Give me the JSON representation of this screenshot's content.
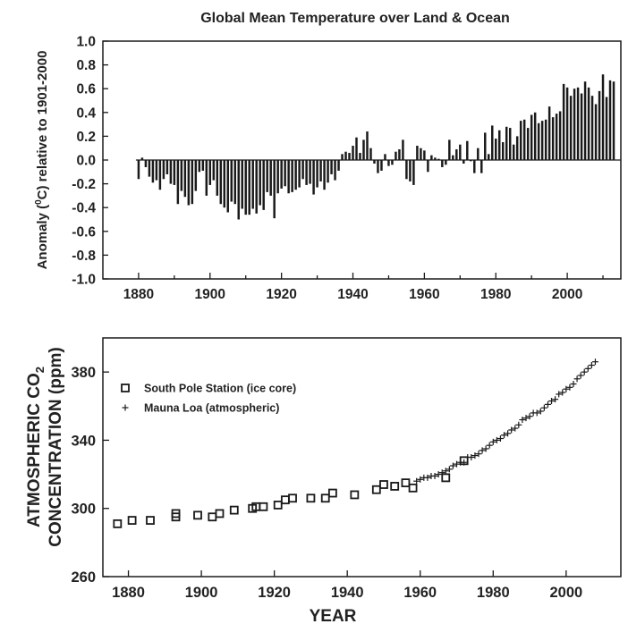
{
  "chart_data": [
    {
      "type": "bar",
      "title": "Global Mean Temperature over Land & Ocean",
      "xlabel": "",
      "ylabel": "Anomaly (°C) relative to 1901-2000",
      "ylabel_parts": {
        "pre": "Anomaly (",
        "sup": "0",
        "post": "C) relative to 1901-2000"
      },
      "xlim": [
        1870,
        2015
      ],
      "ylim": [
        -1.0,
        1.0
      ],
      "x_ticks": [
        1880,
        1900,
        1920,
        1940,
        1960,
        1980,
        2000
      ],
      "y_ticks": [
        -1.0,
        -0.8,
        -0.6,
        -0.4,
        -0.2,
        0.0,
        0.2,
        0.4,
        0.6,
        0.8,
        1.0
      ],
      "bar_color": "#1a1a1a",
      "x": [
        1880,
        1881,
        1882,
        1883,
        1884,
        1885,
        1886,
        1887,
        1888,
        1889,
        1890,
        1891,
        1892,
        1893,
        1894,
        1895,
        1896,
        1897,
        1898,
        1899,
        1900,
        1901,
        1902,
        1903,
        1904,
        1905,
        1906,
        1907,
        1908,
        1909,
        1910,
        1911,
        1912,
        1913,
        1914,
        1915,
        1916,
        1917,
        1918,
        1919,
        1920,
        1921,
        1922,
        1923,
        1924,
        1925,
        1926,
        1927,
        1928,
        1929,
        1930,
        1931,
        1932,
        1933,
        1934,
        1935,
        1936,
        1937,
        1938,
        1939,
        1940,
        1941,
        1942,
        1943,
        1944,
        1945,
        1946,
        1947,
        1948,
        1949,
        1950,
        1951,
        1952,
        1953,
        1954,
        1955,
        1956,
        1957,
        1958,
        1959,
        1960,
        1961,
        1962,
        1963,
        1964,
        1965,
        1966,
        1967,
        1968,
        1969,
        1970,
        1971,
        1972,
        1973,
        1974,
        1975,
        1976,
        1977,
        1978,
        1979,
        1980,
        1981,
        1982,
        1983,
        1984,
        1985,
        1986,
        1987,
        1988,
        1989,
        1990,
        1991,
        1992,
        1993,
        1994,
        1995,
        1996,
        1997,
        1998,
        1999,
        2000,
        2001,
        2002,
        2003,
        2004,
        2005,
        2006,
        2007,
        2008,
        2009,
        2010,
        2011,
        2012,
        2013
      ],
      "values": [
        -0.16,
        0.02,
        -0.06,
        -0.14,
        -0.19,
        -0.17,
        -0.25,
        -0.16,
        -0.12,
        -0.2,
        -0.21,
        -0.37,
        -0.26,
        -0.31,
        -0.38,
        -0.37,
        -0.26,
        -0.1,
        -0.09,
        -0.3,
        -0.21,
        -0.17,
        -0.3,
        -0.37,
        -0.4,
        -0.44,
        -0.35,
        -0.37,
        -0.5,
        -0.41,
        -0.46,
        -0.46,
        -0.41,
        -0.45,
        -0.38,
        -0.42,
        -0.27,
        -0.3,
        -0.49,
        -0.28,
        -0.24,
        -0.22,
        -0.28,
        -0.27,
        -0.25,
        -0.23,
        -0.16,
        -0.21,
        -0.2,
        -0.29,
        -0.23,
        -0.18,
        -0.25,
        -0.19,
        -0.12,
        -0.17,
        -0.09,
        0.05,
        0.07,
        0.06,
        0.12,
        0.19,
        0.06,
        0.17,
        0.24,
        0.1,
        -0.03,
        -0.11,
        -0.09,
        0.05,
        -0.05,
        -0.04,
        0.07,
        0.09,
        0.17,
        -0.16,
        -0.18,
        -0.21,
        0.12,
        0.1,
        0.08,
        -0.1,
        0.04,
        0.02,
        0.01,
        -0.06,
        -0.04,
        0.17,
        0.04,
        0.09,
        0.13,
        -0.03,
        0.16,
        -0.01,
        -0.11,
        0.1,
        -0.11,
        0.23,
        0.05,
        0.29,
        0.18,
        0.25,
        0.15,
        0.28,
        0.27,
        0.13,
        0.2,
        0.33,
        0.34,
        0.27,
        0.38,
        0.4,
        0.31,
        0.33,
        0.34,
        0.45,
        0.36,
        0.39,
        0.41,
        0.64,
        0.61,
        0.54,
        0.6,
        0.61,
        0.56,
        0.66,
        0.61,
        0.54,
        0.47,
        0.58,
        0.72,
        0.53,
        0.67,
        0.66
      ]
    },
    {
      "type": "scatter",
      "title": "",
      "xlabel": "YEAR",
      "ylabel_line1": "ATMOSPHERIC CO",
      "ylabel_line1_sub": "2",
      "ylabel_line2": "CONCENTRATION (ppm)",
      "xlim": [
        1873,
        2015
      ],
      "ylim": [
        260,
        400
      ],
      "x_ticks": [
        1880,
        1900,
        1920,
        1940,
        1960,
        1980,
        2000
      ],
      "y_ticks": [
        260,
        300,
        340,
        380
      ],
      "legend_position": "upper-left",
      "series": [
        {
          "name": "South Pole Station (ice core)",
          "marker": "square",
          "x": [
            1877,
            1881,
            1886,
            1893,
            1893,
            1899,
            1903,
            1905,
            1909,
            1914,
            1915,
            1917,
            1921,
            1923,
            1925,
            1930,
            1934,
            1936,
            1942,
            1948,
            1950,
            1953,
            1956,
            1958,
            1967,
            1972
          ],
          "y": [
            291,
            293,
            293,
            295,
            297,
            296,
            295,
            297,
            299,
            300,
            301,
            301,
            302,
            305,
            306,
            306,
            306,
            309,
            308,
            311,
            314,
            313,
            315,
            312,
            318,
            328
          ]
        },
        {
          "name": "Mauna Loa (atmospheric)",
          "marker": "plus",
          "x": [
            1959,
            1960,
            1961,
            1962,
            1963,
            1964,
            1965,
            1966,
            1967,
            1968,
            1969,
            1970,
            1971,
            1972,
            1973,
            1974,
            1975,
            1976,
            1977,
            1978,
            1979,
            1980,
            1981,
            1982,
            1983,
            1984,
            1985,
            1986,
            1987,
            1988,
            1989,
            1990,
            1991,
            1992,
            1993,
            1994,
            1995,
            1996,
            1997,
            1998,
            1999,
            2000,
            2001,
            2002,
            2003,
            2004,
            2005,
            2006,
            2007,
            2008
          ],
          "y": [
            316,
            317,
            318,
            318,
            319,
            319,
            320,
            321,
            322,
            323,
            325,
            326,
            327,
            327,
            330,
            330,
            331,
            332,
            334,
            335,
            337,
            339,
            340,
            341,
            343,
            344,
            346,
            347,
            349,
            352,
            353,
            354,
            356,
            356,
            357,
            359,
            361,
            363,
            364,
            367,
            368,
            370,
            371,
            373,
            376,
            378,
            380,
            382,
            384,
            386
          ]
        }
      ]
    }
  ]
}
